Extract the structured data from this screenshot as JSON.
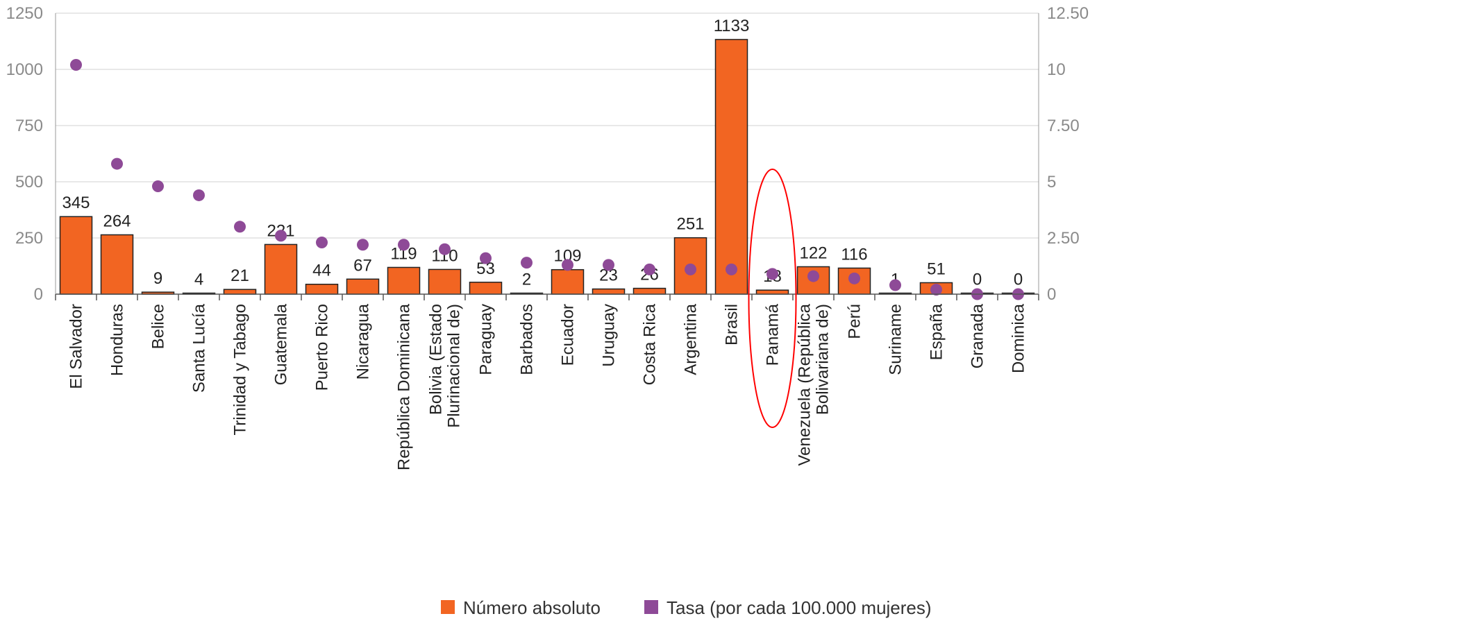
{
  "chart_data": {
    "type": "bar",
    "categories": [
      "El Salvador",
      "Honduras",
      "Belice",
      "Santa Lucía",
      "Trinidad y Tabago",
      "Guatemala",
      "Puerto Rico",
      "Nicaragua",
      "República Dominicana",
      [
        "Bolivia (Estado",
        "Plurinacional de)"
      ],
      "Paraguay",
      "Barbados",
      "Ecuador",
      "Uruguay",
      "Costa Rica",
      "Argentina",
      "Brasil",
      "Panamá",
      [
        "Venezuela (República",
        "Bolivariana de)"
      ],
      "Perú",
      "Suriname",
      "España",
      "Granada",
      "Dominica"
    ],
    "series": [
      {
        "name": "Número absoluto",
        "type": "bar",
        "axis": "left",
        "color": "#f26522",
        "values": [
          345,
          264,
          9,
          4,
          21,
          221,
          44,
          67,
          119,
          110,
          53,
          2,
          109,
          23,
          26,
          251,
          1133,
          18,
          122,
          116,
          1,
          51,
          0,
          0
        ],
        "labels": [
          "345",
          "264",
          "9",
          "4",
          "21",
          "221",
          "44",
          "67",
          "119",
          "110",
          "53",
          "2",
          "109",
          "23",
          "26",
          "251",
          "1133",
          "18",
          "122",
          "116",
          "1",
          "51",
          "0",
          "0"
        ]
      },
      {
        "name": "Tasa (por cada 100.000 mujeres)",
        "type": "scatter",
        "axis": "right",
        "color": "#8e4a97",
        "values": [
          10.2,
          5.8,
          4.8,
          4.4,
          3.0,
          2.6,
          2.3,
          2.2,
          2.2,
          2.0,
          1.6,
          1.4,
          1.3,
          1.3,
          1.1,
          1.1,
          1.1,
          0.9,
          0.8,
          0.7,
          0.4,
          0.2,
          0.0,
          0.0
        ]
      }
    ],
    "y_left": {
      "min": 0,
      "max": 1250,
      "ticks": [
        0,
        250,
        500,
        750,
        1000,
        1250
      ],
      "tick_labels": [
        "0",
        "250",
        "500",
        "750",
        "1000",
        "1250"
      ]
    },
    "y_right": {
      "min": 0,
      "max": 12.5,
      "ticks": [
        0,
        2.5,
        5,
        7.5,
        10,
        12.5
      ],
      "tick_labels": [
        "0",
        "2.50",
        "5",
        "7.50",
        "10",
        "12.50"
      ]
    },
    "grid": true,
    "legend_position": "bottom-center",
    "highlight": {
      "category": "Panamá",
      "shape": "ellipse",
      "color": "#ff0000"
    }
  }
}
